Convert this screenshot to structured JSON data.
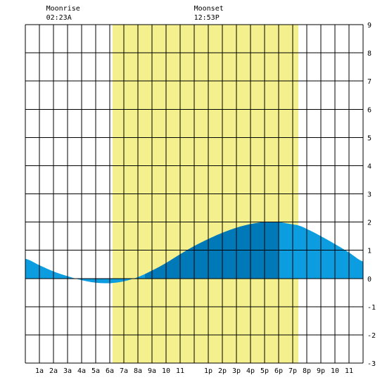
{
  "chart_data": {
    "type": "area",
    "title": "",
    "xlabel": "",
    "ylabel": "",
    "x_range_hours": [
      0,
      24
    ],
    "ylim": [
      -3,
      9
    ],
    "y_ticks": [
      "-3",
      "-2",
      "-1",
      "0",
      "1",
      "2",
      "3",
      "4",
      "5",
      "6",
      "7",
      "8",
      "9"
    ],
    "x_ticks": [
      {
        "hour": 1,
        "label": "1a"
      },
      {
        "hour": 2,
        "label": "2a"
      },
      {
        "hour": 3,
        "label": "3a"
      },
      {
        "hour": 4,
        "label": "4a"
      },
      {
        "hour": 5,
        "label": "5a"
      },
      {
        "hour": 6,
        "label": "6a"
      },
      {
        "hour": 7,
        "label": "7a"
      },
      {
        "hour": 8,
        "label": "8a"
      },
      {
        "hour": 9,
        "label": "9a"
      },
      {
        "hour": 10,
        "label": "10"
      },
      {
        "hour": 11,
        "label": "11"
      },
      {
        "hour": 13,
        "label": "1p"
      },
      {
        "hour": 14,
        "label": "2p"
      },
      {
        "hour": 15,
        "label": "3p"
      },
      {
        "hour": 16,
        "label": "4p"
      },
      {
        "hour": 17,
        "label": "5p"
      },
      {
        "hour": 18,
        "label": "6p"
      },
      {
        "hour": 19,
        "label": "7p"
      },
      {
        "hour": 20,
        "label": "8p"
      },
      {
        "hour": 21,
        "label": "9p"
      },
      {
        "hour": 22,
        "label": "10"
      },
      {
        "hour": 23,
        "label": "11"
      }
    ],
    "daylight_hours": [
      6.2,
      19.4
    ],
    "tide_series": {
      "hours": [
        0,
        1,
        2,
        3,
        4,
        5,
        6,
        6.2,
        7,
        8,
        9,
        10,
        11,
        12,
        13,
        14,
        15,
        16,
        17,
        18,
        19,
        19.4,
        20,
        21,
        22,
        23,
        24
      ],
      "heights": [
        0.7,
        0.47,
        0.25,
        0.08,
        -0.06,
        -0.15,
        -0.17,
        -0.16,
        -0.1,
        0.05,
        0.28,
        0.55,
        0.86,
        1.15,
        1.4,
        1.62,
        1.8,
        1.93,
        2.0,
        2.0,
        1.92,
        1.88,
        1.75,
        1.5,
        1.22,
        0.92,
        0.6
      ]
    },
    "shade_segments": [
      {
        "from": 0,
        "to": 6.2,
        "color": "#0b9de0"
      },
      {
        "from": 6.2,
        "to": 8.5,
        "color": "#0b9de0"
      },
      {
        "from": 8.5,
        "to": 18.0,
        "color": "#0079b8"
      },
      {
        "from": 18.0,
        "to": 24,
        "color": "#0b9de0"
      }
    ],
    "annotations": [
      {
        "label": "Moonrise",
        "time": "02:23A",
        "hour": 2.38
      },
      {
        "label": "Moonset",
        "time": "12:53P",
        "hour": 12.88
      }
    ],
    "colors": {
      "daylight": "#f5f08e",
      "water_light": "#0b9de0",
      "water_dark": "#0079b8",
      "grid": "#000000"
    },
    "grid": true
  }
}
